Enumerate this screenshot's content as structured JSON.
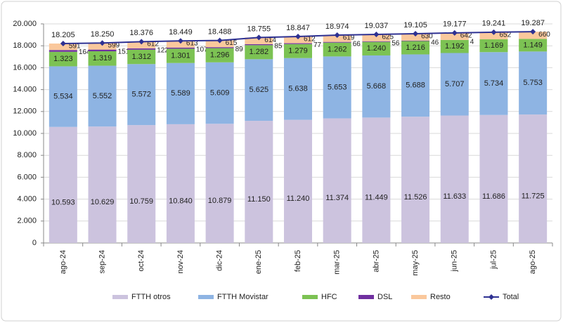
{
  "chart_data": {
    "type": "stacked-bar",
    "categories": [
      "ago-24",
      "sep-24",
      "oct-24",
      "nov-24",
      "dic-24",
      "ene-25",
      "feb-25",
      "mar-25",
      "abr-25",
      "may-25",
      "jun-25",
      "jul-25",
      "ago-25"
    ],
    "series": [
      {
        "name": "FTTH otros",
        "color": "#ccc3de",
        "values": [
          10593,
          10629,
          10759,
          10840,
          10879,
          11150,
          11240,
          11374,
          11449,
          11526,
          11633,
          11686,
          11725
        ],
        "value_labels": [
          "10.593",
          "10.629",
          "10.759",
          "10.840",
          "10.879",
          "11.150",
          "11.240",
          "11.374",
          "11.449",
          "11.526",
          "11.633",
          "11.686",
          "11.725"
        ]
      },
      {
        "name": "FTTH Movistar",
        "color": "#8eb4e3",
        "values": [
          5534,
          5552,
          5572,
          5589,
          5609,
          5625,
          5638,
          5653,
          5668,
          5688,
          5707,
          5734,
          5753
        ],
        "value_labels": [
          "5.534",
          "5.552",
          "5.572",
          "5.589",
          "5.609",
          "5.625",
          "5.638",
          "5.653",
          "5.668",
          "5.688",
          "5.707",
          "5.734",
          "5.753"
        ]
      },
      {
        "name": "HFC",
        "color": "#7cc253",
        "values": [
          1323,
          1319,
          1312,
          1301,
          1296,
          1282,
          1279,
          1262,
          1240,
          1216,
          1192,
          1169,
          1149
        ],
        "value_labels": [
          "1.323",
          "1.319",
          "1.312",
          "1.301",
          "1.296",
          "1.282",
          "1.279",
          "1.262",
          "1.240",
          "1.216",
          "1.192",
          "1.169",
          "1.149"
        ]
      },
      {
        "name": "DSL",
        "color": "#7030a0",
        "values": [
          164,
          151,
          122,
          107,
          89,
          85,
          77,
          66,
          56,
          46,
          4,
          null,
          null
        ]
      },
      {
        "name": "Resto",
        "color": "#fac89c",
        "values": [
          591,
          599,
          612,
          613,
          615,
          614,
          612,
          619,
          625,
          630,
          642,
          652,
          660
        ]
      },
      {
        "name": "Total",
        "color": "#2e3192",
        "type": "line",
        "values": [
          18205,
          18250,
          18376,
          18449,
          18488,
          18755,
          18847,
          18974,
          19037,
          19105,
          19177,
          19241,
          19287
        ],
        "value_labels": [
          "18.205",
          "18.250",
          "18.376",
          "18.449",
          "18.488",
          "18.755",
          "18.847",
          "18.974",
          "19.037",
          "19.105",
          "19.177",
          "19.241",
          "19.287"
        ]
      }
    ],
    "ylim": [
      0,
      20000
    ],
    "yticks": [
      0,
      {
        "value": 2000,
        "label": "2.000"
      },
      {
        "value": 4000,
        "label": "4.000"
      },
      {
        "value": 6000,
        "label": "6.000"
      },
      {
        "value": 8000,
        "label": "8.000"
      },
      {
        "value": 10000,
        "label": "10.000"
      },
      {
        "value": 12000,
        "label": "12.000"
      },
      {
        "value": 14000,
        "label": "14.000"
      },
      {
        "value": 16000,
        "label": "16.000"
      },
      {
        "value": 18000,
        "label": "18.000"
      },
      {
        "value": 20000,
        "label": "20.000"
      }
    ],
    "grid": true,
    "legend": "bottom"
  }
}
